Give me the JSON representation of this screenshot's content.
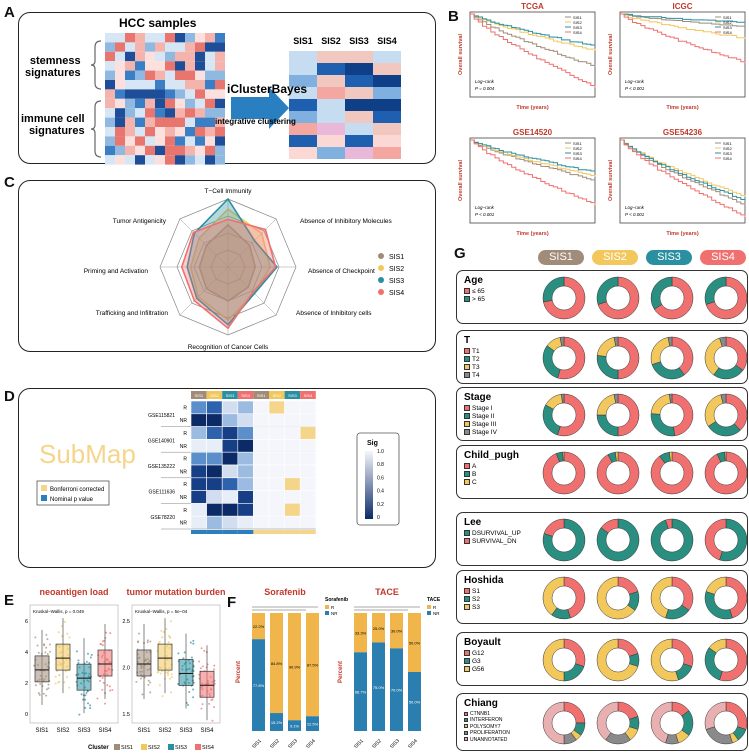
{
  "colors": {
    "SIS1": "#a08c78",
    "SIS2": "#f2c85c",
    "SIS3": "#2a8fa0",
    "SIS4": "#f07070"
  },
  "clusters": [
    "SIS1",
    "SIS2",
    "SIS3",
    "SIS4"
  ],
  "panelA": {
    "label": "A",
    "title": "HCC samples",
    "stemness": "stemness\nsignatures",
    "immune": "immune cell\nsignatures",
    "method": "iClusterBayes",
    "sub": "integrative clustering"
  },
  "panelB": {
    "label": "B",
    "plots": [
      {
        "title": "TCGA",
        "pval": "Log−rank\nP = 0.004"
      },
      {
        "title": "ICGC",
        "pval": "Log−rank\nP < 0.001"
      },
      {
        "title": "GSE14520",
        "pval": "Log−rank\nP < 0.001"
      },
      {
        "title": "GSE54236",
        "pval": "Log−rank\nP < 0.001"
      }
    ],
    "ylab": "Overall survival",
    "xlab": "Time (years)"
  },
  "panelC": {
    "label": "C",
    "axes": [
      "T−Cell Immunity",
      "Absence of Inhibitory Molecules",
      "Absence of Checkpoint",
      "Absence of Inhibitory cells",
      "Recognition of Cancer Cells",
      "Trafficking and Infiltration",
      "Priming and Activation",
      "Tumor Antigenicity"
    ],
    "chart_data": {
      "type": "radar",
      "series": [
        {
          "name": "SIS1",
          "values": [
            0.62,
            0.45,
            0.4,
            0.42,
            0.5,
            0.45,
            0.42,
            0.45
          ]
        },
        {
          "name": "SIS2",
          "values": [
            0.85,
            0.7,
            0.62,
            0.55,
            0.78,
            0.62,
            0.55,
            0.6
          ]
        },
        {
          "name": "SIS3",
          "values": [
            1.0,
            0.55,
            0.72,
            0.55,
            0.85,
            0.65,
            0.6,
            0.7
          ]
        },
        {
          "name": "SIS4",
          "values": [
            0.7,
            0.78,
            0.7,
            0.52,
            0.9,
            0.7,
            0.68,
            0.72
          ]
        }
      ]
    }
  },
  "panelD": {
    "label": "D",
    "title": "SubMap",
    "leg1": "Bonferroni corrected",
    "leg2": "Nominal p value",
    "sig": "Sig",
    "sigticks": [
      "1.0",
      "0.8",
      "0.6",
      "0.4",
      "0.2",
      "0"
    ],
    "datasets": [
      "GSE115821",
      "GSE140901",
      "GSE135222",
      "GSE111636",
      "GSE78220"
    ],
    "rows": [
      "R",
      "NR"
    ]
  },
  "panelE": {
    "label": "E",
    "plots": [
      {
        "title": "neoantigen load",
        "stat": "Kruskal−Wallis, p = 0.049",
        "yticks": [
          "6",
          "4",
          "2",
          "0"
        ]
      },
      {
        "title": "tumor mutation burden",
        "stat": "Kruskal−Wallis, p = 5e−04",
        "yticks": [
          "2.5",
          "2.0",
          "1.5"
        ]
      }
    ],
    "cluster_label": "Cluster"
  },
  "panelF": {
    "label": "F",
    "plots": [
      {
        "title": "Sorafenib",
        "legtitle": "Sorafenib",
        "chart_data": {
          "type": "bar",
          "categories": [
            "SIS1",
            "SIS2",
            "SIS3",
            "SIS4"
          ],
          "series": [
            {
              "name": "R",
              "values": [
                22.2,
                84.8,
                90.9,
                87.5
              ]
            },
            {
              "name": "NR",
              "values": [
                77.8,
                15.2,
                9.1,
                12.5
              ]
            }
          ]
        },
        "labels": [
          [
            "22.2%",
            "77.8%"
          ],
          [
            "84.8%",
            "15.2%"
          ],
          [
            "90.9%",
            "9.1%"
          ],
          [
            "87.5%",
            "12.5%"
          ]
        ]
      },
      {
        "title": "TACE",
        "legtitle": "TACE",
        "chart_data": {
          "type": "bar",
          "categories": [
            "SIS1",
            "SIS2",
            "SIS3",
            "SIS4"
          ],
          "series": [
            {
              "name": "R",
              "values": [
                33.3,
                25.0,
                30.0,
                50.0
              ]
            },
            {
              "name": "NR",
              "values": [
                66.7,
                75.0,
                70.0,
                50.0
              ]
            }
          ]
        },
        "labels": [
          [
            "33.3%",
            "66.7%"
          ],
          [
            "25.0%",
            "75.0%"
          ],
          [
            "30.0%",
            "70.0%"
          ],
          [
            "50.0%",
            "50.0%"
          ]
        ]
      }
    ],
    "ylab": "Percent"
  },
  "panelG": {
    "label": "G",
    "groups": [
      {
        "title": "Age",
        "items": [
          "≤ 65",
          "> 65"
        ],
        "colors": [
          "#f07070",
          "#2a8f80"
        ],
        "rings": [
          [
            0.72,
            0.28
          ],
          [
            0.7,
            0.3
          ],
          [
            0.66,
            0.34
          ],
          [
            0.7,
            0.3
          ]
        ]
      },
      {
        "title": "T",
        "items": [
          "T1",
          "T2",
          "T3",
          "T4"
        ],
        "colors": [
          "#f07070",
          "#2a8f80",
          "#f2c85c",
          "#8a8a8a"
        ],
        "rings": [
          [
            0.55,
            0.3,
            0.12,
            0.03
          ],
          [
            0.5,
            0.27,
            0.2,
            0.03
          ],
          [
            0.4,
            0.3,
            0.27,
            0.03
          ],
          [
            0.35,
            0.25,
            0.35,
            0.05
          ]
        ]
      },
      {
        "title": "Stage",
        "items": [
          "Stage I",
          "Stage II",
          "Stage III",
          "Stage IV"
        ],
        "colors": [
          "#f07070",
          "#2a8f80",
          "#f2c85c",
          "#8a8a8a"
        ],
        "rings": [
          [
            0.55,
            0.28,
            0.15,
            0.02
          ],
          [
            0.5,
            0.25,
            0.22,
            0.03
          ],
          [
            0.48,
            0.28,
            0.22,
            0.02
          ],
          [
            0.38,
            0.28,
            0.3,
            0.04
          ]
        ]
      },
      {
        "title": "Child_pugh",
        "items": [
          "A",
          "B",
          "C"
        ],
        "colors": [
          "#f07070",
          "#2a8f80",
          "#f2c85c"
        ],
        "rings": [
          [
            0.94,
            0.05,
            0.01
          ],
          [
            0.92,
            0.06,
            0.02
          ],
          [
            0.9,
            0.08,
            0.02
          ],
          [
            0.93,
            0.06,
            0.01
          ]
        ]
      },
      {
        "title": "Lee",
        "items": [
          "DSURVIVAL_UP",
          "SURVIVAL_DN"
        ],
        "colors": [
          "#2a8f80",
          "#f07070"
        ],
        "rings": [
          [
            0.8,
            0.2
          ],
          [
            0.85,
            0.15
          ],
          [
            0.95,
            0.05
          ],
          [
            0.55,
            0.45
          ]
        ]
      },
      {
        "title": "Hoshida",
        "items": [
          "S1",
          "S2",
          "S3"
        ],
        "colors": [
          "#f07070",
          "#2a8f80",
          "#f2c85c"
        ],
        "rings": [
          [
            0.45,
            0.15,
            0.4
          ],
          [
            0.2,
            0.15,
            0.65
          ],
          [
            0.35,
            0.2,
            0.45
          ],
          [
            0.45,
            0.35,
            0.2
          ]
        ]
      },
      {
        "title": "Boyault",
        "items": [
          "G12",
          "G3",
          "G56"
        ],
        "colors": [
          "#f07070",
          "#2a8f80",
          "#f2c85c"
        ],
        "rings": [
          [
            0.3,
            0.2,
            0.5
          ],
          [
            0.2,
            0.1,
            0.7
          ],
          [
            0.3,
            0.15,
            0.55
          ],
          [
            0.55,
            0.3,
            0.15
          ]
        ]
      },
      {
        "title": "Chiang",
        "items": [
          "CTNNB1",
          "INTERFERON",
          "POLYSOMY7",
          "PROLIFERATION",
          "UNANNOTATED"
        ],
        "colors": [
          "#f07070",
          "#2a8f80",
          "#f2c85c",
          "#8a8a8a",
          "#e8b0b0"
        ],
        "rings": [
          [
            0.25,
            0.1,
            0.05,
            0.1,
            0.5
          ],
          [
            0.2,
            0.1,
            0.1,
            0.2,
            0.4
          ],
          [
            0.15,
            0.2,
            0.1,
            0.1,
            0.45
          ],
          [
            0.3,
            0.1,
            0.05,
            0.25,
            0.3
          ]
        ]
      }
    ]
  }
}
